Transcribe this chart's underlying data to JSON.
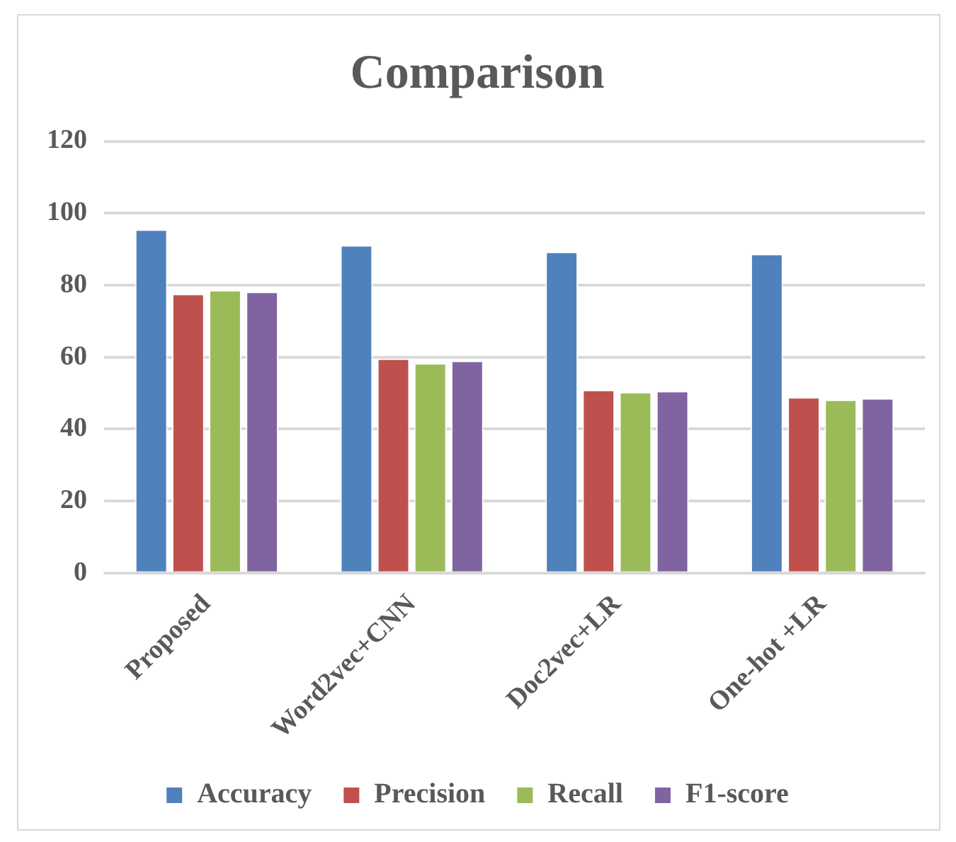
{
  "chart_data": {
    "type": "bar",
    "title": "Comparison",
    "categories": [
      "Proposed",
      "Word2vec+CNN",
      "Doc2vec+LR",
      "One-hot +LR"
    ],
    "series": [
      {
        "name": "Accuracy",
        "color": "#4f81bd",
        "values": [
          95.5,
          91.1,
          89.3,
          88.7
        ]
      },
      {
        "name": "Precision",
        "color": "#c0504d",
        "values": [
          77.6,
          59.6,
          50.9,
          48.9
        ]
      },
      {
        "name": "Recall",
        "color": "#9bbb59",
        "values": [
          78.6,
          58.3,
          50.3,
          48.2
        ]
      },
      {
        "name": "F1-score",
        "color": "#8064a2",
        "values": [
          78.2,
          59.0,
          50.6,
          48.6
        ]
      }
    ],
    "ylim": [
      0,
      120
    ],
    "yticks": [
      0,
      20,
      40,
      60,
      80,
      100,
      120
    ],
    "grid": "y",
    "legend": "bottom"
  }
}
